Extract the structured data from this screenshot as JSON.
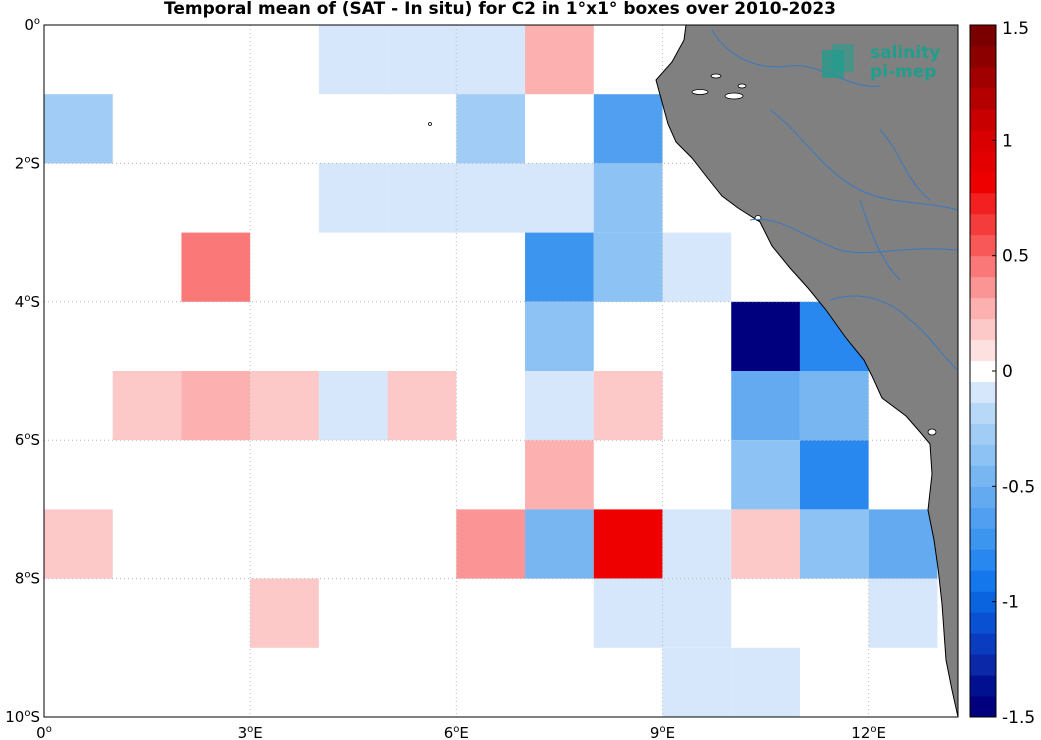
{
  "title": "Temporal mean of (SAT - In situ) for C2 in 1°x1° boxes over 2010-2023",
  "logo": {
    "line1": "salinity",
    "line2": "pi-mep"
  },
  "colors": {
    "land": "#808080",
    "rivers": "#3a78c0",
    "coast": "#000000",
    "grid": "#b8b8b8",
    "logo_teal": "#1f9e8c"
  },
  "map": {
    "lon_range": [
      0,
      13.3
    ],
    "lat_range": [
      -10,
      0
    ],
    "x_ticks": [
      {
        "value": 0,
        "label": "0",
        "sup": "o"
      },
      {
        "value": 3,
        "label": "3",
        "sup": "o",
        "suffix": "E"
      },
      {
        "value": 6,
        "label": "6",
        "sup": "o",
        "suffix": "E"
      },
      {
        "value": 9,
        "label": "9",
        "sup": "o",
        "suffix": "E"
      },
      {
        "value": 12,
        "label": "12",
        "sup": "o",
        "suffix": "E"
      }
    ],
    "y_ticks": [
      {
        "value": 0,
        "label": "0",
        "sup": "o",
        "suffix": ""
      },
      {
        "value": -2,
        "label": "2",
        "sup": "o",
        "suffix": "S"
      },
      {
        "value": -4,
        "label": "4",
        "sup": "o",
        "suffix": "S"
      },
      {
        "value": -6,
        "label": "6",
        "sup": "o",
        "suffix": "S"
      },
      {
        "value": -8,
        "label": "8",
        "sup": "o",
        "suffix": "S"
      },
      {
        "value": -10,
        "label": "10",
        "sup": "o",
        "suffix": "S"
      }
    ],
    "grid": true
  },
  "colorbar": {
    "range": [
      -1.5,
      1.5
    ],
    "ticks": [
      {
        "value": 1.5,
        "label": "1.5"
      },
      {
        "value": 1,
        "label": "1"
      },
      {
        "value": 0.5,
        "label": "0.5"
      },
      {
        "value": 0,
        "label": "0"
      },
      {
        "value": -0.5,
        "label": "-0.5"
      },
      {
        "value": -1,
        "label": "-1"
      },
      {
        "value": -1.5,
        "label": "-1.5"
      }
    ],
    "colors": [
      "#00007f",
      "#001090",
      "#0a28a8",
      "#0a3cc0",
      "#0a50d2",
      "#0a64e0",
      "#1478ec",
      "#2888f0",
      "#3c96f0",
      "#509ff0",
      "#64aaf0",
      "#78b6f2",
      "#8cc2f4",
      "#a0ccf6",
      "#b8d8f8",
      "#d6e6fb",
      "#ffffff",
      "#fde0e0",
      "#fcc8c8",
      "#fcb0b0",
      "#fb9494",
      "#fa7878",
      "#f85858",
      "#f53c3c",
      "#f22020",
      "#ee0000",
      "#e40000",
      "#d80000",
      "#c80000",
      "#b40000",
      "#a00000",
      "#8c0000",
      "#7a0000"
    ]
  },
  "chart_data": {
    "type": "heatmap",
    "title": "Temporal mean of (SAT - In situ) for C2 in 1°x1° boxes over 2010-2023",
    "cell_size_deg": 1,
    "cells": [
      {
        "lon": 4,
        "lat": 0,
        "value": -0.1
      },
      {
        "lon": 5,
        "lat": 0,
        "value": -0.1
      },
      {
        "lon": 6,
        "lat": 0,
        "value": -0.1
      },
      {
        "lon": 7,
        "lat": 0,
        "value": 0.3
      },
      {
        "lon": 0,
        "lat": -1,
        "value": -0.25
      },
      {
        "lon": 6,
        "lat": -1,
        "value": -0.25
      },
      {
        "lon": 8,
        "lat": -1,
        "value": -0.6
      },
      {
        "lon": 4,
        "lat": -2,
        "value": -0.1
      },
      {
        "lon": 5,
        "lat": -2,
        "value": -0.1
      },
      {
        "lon": 6,
        "lat": -2,
        "value": -0.1
      },
      {
        "lon": 7,
        "lat": -2,
        "value": -0.1
      },
      {
        "lon": 8,
        "lat": -2,
        "value": -0.35
      },
      {
        "lon": 2,
        "lat": -3,
        "value": 0.45
      },
      {
        "lon": 7,
        "lat": -3,
        "value": -0.75
      },
      {
        "lon": 8,
        "lat": -3,
        "value": -0.35
      },
      {
        "lon": 9,
        "lat": -3,
        "value": -0.1
      },
      {
        "lon": 7,
        "lat": -4,
        "value": -0.35
      },
      {
        "lon": 10,
        "lat": -4,
        "value": -1.5
      },
      {
        "lon": 11,
        "lat": -4,
        "value": -0.85
      },
      {
        "lon": 1,
        "lat": -5,
        "value": 0.15
      },
      {
        "lon": 2,
        "lat": -5,
        "value": 0.3
      },
      {
        "lon": 3,
        "lat": -5,
        "value": 0.15
      },
      {
        "lon": 4,
        "lat": -5,
        "value": -0.1
      },
      {
        "lon": 5,
        "lat": -5,
        "value": 0.15
      },
      {
        "lon": 7,
        "lat": -5,
        "value": -0.1
      },
      {
        "lon": 8,
        "lat": -5,
        "value": 0.15
      },
      {
        "lon": 10,
        "lat": -5,
        "value": -0.55
      },
      {
        "lon": 11,
        "lat": -5,
        "value": -0.45
      },
      {
        "lon": 7,
        "lat": -6,
        "value": 0.3
      },
      {
        "lon": 10,
        "lat": -6,
        "value": -0.4
      },
      {
        "lon": 11,
        "lat": -6,
        "value": -0.8
      },
      {
        "lon": 0,
        "lat": -7,
        "value": 0.15
      },
      {
        "lon": 6,
        "lat": -7,
        "value": 0.35
      },
      {
        "lon": 7,
        "lat": -7,
        "value": -0.5
      },
      {
        "lon": 8,
        "lat": -7,
        "value": 0.85
      },
      {
        "lon": 9,
        "lat": -7,
        "value": -0.1
      },
      {
        "lon": 10,
        "lat": -7,
        "value": 0.15
      },
      {
        "lon": 11,
        "lat": -7,
        "value": -0.35
      },
      {
        "lon": 12,
        "lat": -7,
        "value": -0.55
      },
      {
        "lon": 3,
        "lat": -8,
        "value": 0.15
      },
      {
        "lon": 8,
        "lat": -8,
        "value": -0.1
      },
      {
        "lon": 9,
        "lat": -8,
        "value": -0.1
      },
      {
        "lon": 12,
        "lat": -8,
        "value": -0.1
      },
      {
        "lon": 9,
        "lat": -9,
        "value": -0.1
      },
      {
        "lon": 10,
        "lat": -9,
        "value": -0.1
      }
    ]
  }
}
